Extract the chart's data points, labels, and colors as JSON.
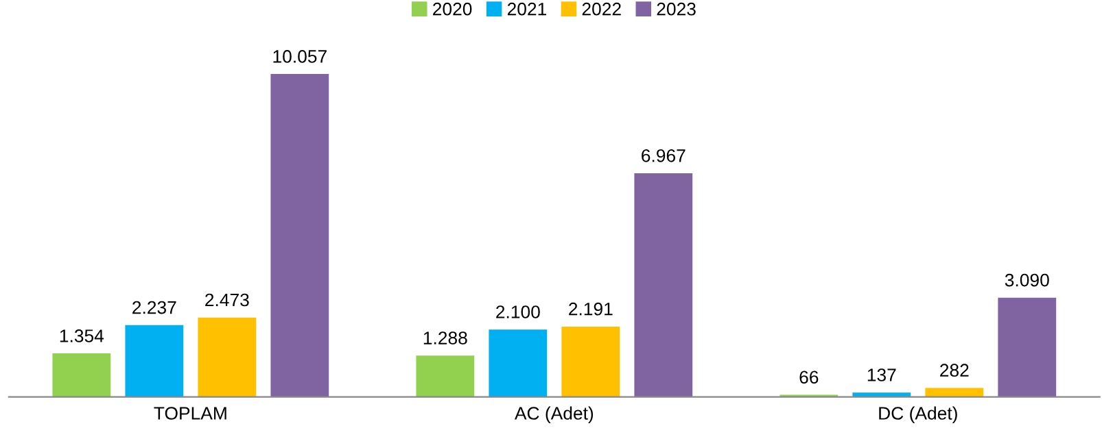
{
  "chart_data": {
    "type": "bar",
    "categories": [
      "TOPLAM",
      "AC (Adet)",
      "DC (Adet)"
    ],
    "series": [
      {
        "name": "2020",
        "color": "#92d050",
        "values": [
          1354,
          1288,
          66
        ],
        "value_labels": [
          "1.354",
          "1.288",
          "66"
        ]
      },
      {
        "name": "2021",
        "color": "#00b0f0",
        "values": [
          2237,
          2100,
          137
        ],
        "value_labels": [
          "2.237",
          "2.100",
          "137"
        ]
      },
      {
        "name": "2022",
        "color": "#ffc000",
        "values": [
          2473,
          2191,
          282
        ],
        "value_labels": [
          "2.473",
          "2.191",
          "282"
        ]
      },
      {
        "name": "2023",
        "color": "#8064a2",
        "values": [
          10057,
          6967,
          3090
        ],
        "value_labels": [
          "10.057",
          "6.967",
          "3.090"
        ]
      }
    ],
    "legend": "top",
    "grid": false,
    "tick_labels": "x"
  }
}
